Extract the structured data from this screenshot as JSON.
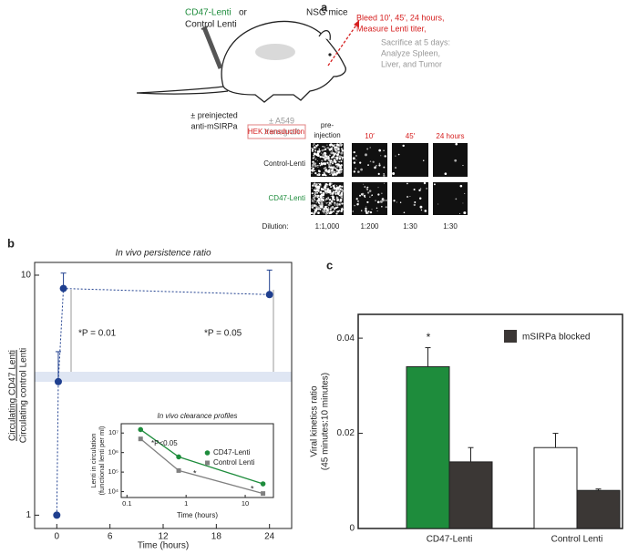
{
  "panel_labels": [
    "a",
    "b",
    "c"
  ],
  "diagram": {
    "lenti_choice": [
      "CD47-Lenti",
      "or",
      "Control Lenti"
    ],
    "mouse": "NSG mice",
    "bleed": [
      "Bleed 10′, 45′, 24 hours,",
      "Measure Lenti titer,"
    ],
    "sacrifice": [
      "Sacrifice at 5 days:",
      "Analyze Spleen,",
      "Liver, and Tumor"
    ],
    "preinjected": [
      "± preinjected",
      "anti-mSIRPa"
    ],
    "xenograft": [
      "± A549",
      "Xenograft"
    ],
    "assay": "HEK transduction",
    "columns": [
      [
        "pre-",
        "injection"
      ],
      [
        "10′"
      ],
      [
        "45′"
      ],
      [
        "24 hours"
      ]
    ],
    "rows": [
      "Control-Lenti",
      "CD47-Lenti"
    ],
    "dilution_label": "Dilution:",
    "dilutions": [
      "1:1,000",
      "1:200",
      "1:30",
      "1:30"
    ]
  },
  "chart_data": [
    {
      "type": "scatter",
      "title": "In vivo persistence ratio",
      "ylabel": [
        "Circulating CD47 Lenti",
        "Circulating control Lenti"
      ],
      "xlabel": "Time (hours)",
      "x": [
        0,
        0.17,
        0.75,
        24
      ],
      "series": [
        {
          "color": "#1f3f8f",
          "values": [
            1,
            3.6,
            8.8,
            8.3
          ],
          "errors": [
            null,
            1.2,
            1.4,
            2.2
          ]
        }
      ],
      "xlim": [
        -2.5,
        26.5
      ],
      "ylim": [
        0.88,
        11.3
      ],
      "ylog": true,
      "xticks": [
        0,
        6,
        12,
        18,
        24
      ],
      "yticks": [
        1,
        10
      ],
      "annotations": [
        "*P = 0.01",
        "*P = 0.05"
      ]
    },
    {
      "type": "line",
      "title": "In vivo clearance profiles",
      "ylabel": [
        "Lenti in circulation",
        "(functional lenti per ml)"
      ],
      "xlabel": "Time (hours)",
      "x": [
        0.17,
        0.75,
        20
      ],
      "series": [
        {
          "name": "CD47-Lenti",
          "color": "#1e8c3c",
          "marker": "circle",
          "values": [
            15000000,
            600000,
            25000
          ]
        },
        {
          "name": "Control Lenti",
          "color": "#808080",
          "marker": "square",
          "values": [
            5000000,
            120000,
            8000
          ]
        }
      ],
      "xlim": [
        0.08,
        30
      ],
      "ylim": [
        5000,
        30000000
      ],
      "xlog": true,
      "ylog": true,
      "xticks": [
        0.1,
        1,
        10
      ],
      "yticks": [
        {
          "value": 10000,
          "label": "10⁴"
        },
        {
          "value": 100000,
          "label": "10⁵"
        },
        {
          "value": 1000000,
          "label": "10⁶"
        },
        {
          "value": 10000000,
          "label": "10⁷"
        }
      ],
      "annotations": [
        "*P<0.05",
        "*",
        "*"
      ],
      "legend": "upper right"
    },
    {
      "type": "bar",
      "ylabel": [
        "Viral kinetics ratio",
        "(45 minutes:10 minutes)"
      ],
      "categories": [
        "CD47-Lenti",
        "Control Lenti"
      ],
      "series": [
        {
          "colors": [
            "#1e8c3c",
            "#ffffff"
          ],
          "values": [
            0.034,
            0.017
          ],
          "errors": [
            0.004,
            0.003
          ]
        },
        {
          "name": "mSIRPa blocked",
          "color": "#3b3735",
          "values": [
            0.014,
            0.008
          ],
          "errors": [
            0.003,
            0.0003
          ]
        }
      ],
      "ylim": [
        0,
        0.045
      ],
      "yticks": [
        0,
        0.02,
        0.04
      ],
      "annotations": [
        "*"
      ],
      "legend": "upper right"
    }
  ]
}
